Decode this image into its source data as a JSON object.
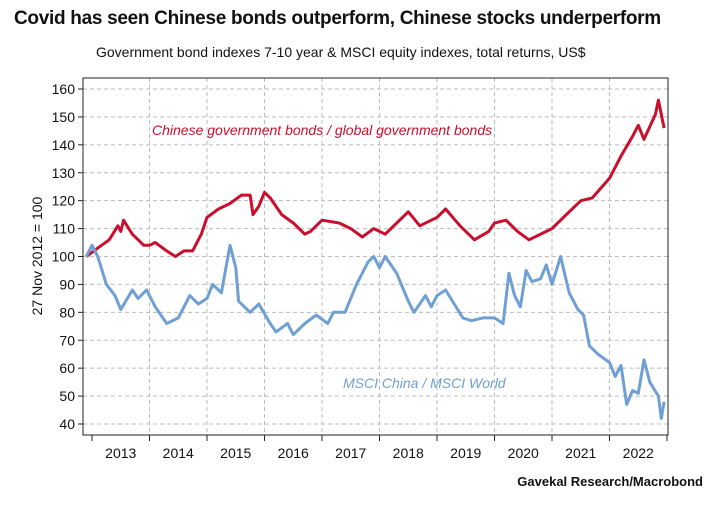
{
  "chart_data": {
    "type": "line",
    "title": "Covid has seen Chinese bonds outperform, Chinese stocks underperform",
    "subtitle": "Government bond indexes 7-10 year & MSCI equity indexes, total returns, US$",
    "ylabel": "27 Nov 2012 = 100",
    "xlabel": "",
    "ylim": [
      38,
      163
    ],
    "xlim": [
      2012.9,
      2023.02
    ],
    "yticks": [
      40,
      50,
      60,
      70,
      80,
      90,
      100,
      110,
      120,
      130,
      140,
      150,
      160
    ],
    "xtick_labels": [
      "2013",
      "2014",
      "2015",
      "2016",
      "2017",
      "2018",
      "2019",
      "2020",
      "2021",
      "2022"
    ],
    "grid": true,
    "source": "Gavekal Research/Macrobond",
    "series": [
      {
        "name": "Chinese government bonds / global government bonds",
        "color": "#c8102e",
        "x": [
          2012.9,
          2013.1,
          2013.3,
          2013.45,
          2013.5,
          2013.55,
          2013.7,
          2013.9,
          2014.0,
          2014.1,
          2014.3,
          2014.45,
          2014.6,
          2014.75,
          2014.9,
          2015.0,
          2015.2,
          2015.4,
          2015.6,
          2015.75,
          2015.8,
          2015.9,
          2016.0,
          2016.1,
          2016.3,
          2016.5,
          2016.7,
          2016.8,
          2017.0,
          2017.3,
          2017.5,
          2017.7,
          2017.9,
          2018.1,
          2018.3,
          2018.5,
          2018.7,
          2018.9,
          2019.0,
          2019.15,
          2019.4,
          2019.65,
          2019.9,
          2020.0,
          2020.2,
          2020.4,
          2020.6,
          2020.9,
          2021.0,
          2021.3,
          2021.5,
          2021.7,
          2022.0,
          2022.2,
          2022.4,
          2022.5,
          2022.6,
          2022.8,
          2022.85,
          2022.95
        ],
        "values": [
          100,
          103,
          106,
          111,
          109,
          113,
          108,
          104,
          104,
          105,
          102,
          100,
          102,
          102,
          108,
          114,
          117,
          119,
          122,
          122,
          115,
          118,
          123,
          121,
          115,
          112,
          108,
          109,
          113,
          112,
          110,
          107,
          110,
          108,
          112,
          116,
          111,
          113,
          114,
          117,
          111,
          106,
          109,
          112,
          113,
          109,
          106,
          109,
          110,
          116,
          120,
          121,
          128,
          136,
          143,
          147,
          142,
          151,
          156,
          146
        ]
      },
      {
        "name": "MSCI China / MSCI World",
        "color": "#6f9fd3",
        "x": [
          2012.9,
          2013.0,
          2013.1,
          2013.25,
          2013.4,
          2013.5,
          2013.7,
          2013.8,
          2013.95,
          2014.1,
          2014.3,
          2014.5,
          2014.7,
          2014.85,
          2015.0,
          2015.1,
          2015.25,
          2015.4,
          2015.5,
          2015.55,
          2015.75,
          2015.9,
          2016.1,
          2016.2,
          2016.4,
          2016.5,
          2016.7,
          2016.9,
          2017.1,
          2017.2,
          2017.4,
          2017.6,
          2017.8,
          2017.9,
          2018.0,
          2018.1,
          2018.3,
          2018.5,
          2018.6,
          2018.8,
          2018.9,
          2019.0,
          2019.15,
          2019.3,
          2019.45,
          2019.6,
          2019.8,
          2020.0,
          2020.15,
          2020.25,
          2020.35,
          2020.45,
          2020.55,
          2020.65,
          2020.8,
          2020.9,
          2021.0,
          2021.15,
          2021.3,
          2021.45,
          2021.55,
          2021.65,
          2021.8,
          2022.0,
          2022.1,
          2022.2,
          2022.3,
          2022.4,
          2022.5,
          2022.6,
          2022.7,
          2022.85,
          2022.9,
          2022.95
        ],
        "values": [
          100,
          104,
          100,
          90,
          86,
          81,
          88,
          85,
          88,
          82,
          76,
          78,
          86,
          83,
          85,
          90,
          87,
          104,
          96,
          84,
          80,
          83,
          76,
          73,
          76,
          72,
          76,
          79,
          76,
          80,
          80,
          90,
          98,
          100,
          96,
          100,
          94,
          84,
          80,
          86,
          82,
          86,
          88,
          83,
          78,
          77,
          78,
          78,
          76,
          94,
          86,
          82,
          95,
          91,
          92,
          97,
          90,
          100,
          87,
          81,
          79,
          68,
          65,
          62,
          57,
          61,
          47,
          52,
          51,
          63,
          55,
          50,
          42,
          48
        ]
      }
    ]
  }
}
